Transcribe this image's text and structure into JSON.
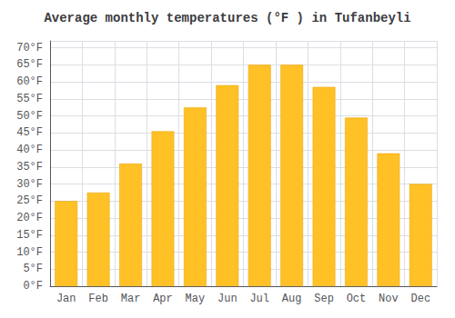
{
  "chart_data": {
    "type": "bar",
    "title": "Average monthly temperatures (°F ) in Tufanbeyli",
    "categories": [
      "Jan",
      "Feb",
      "Mar",
      "Apr",
      "May",
      "Jun",
      "Jul",
      "Aug",
      "Sep",
      "Oct",
      "Nov",
      "Dec"
    ],
    "values": [
      25,
      27.5,
      36,
      45.5,
      52.5,
      59,
      65,
      65,
      58.5,
      49.5,
      39,
      30
    ],
    "color": "#FFC125",
    "ylim": [
      0,
      72
    ],
    "yticks": [
      {
        "value": 0,
        "label": "0°F"
      },
      {
        "value": 5,
        "label": "5°F"
      },
      {
        "value": 10,
        "label": "10°F"
      },
      {
        "value": 15,
        "label": "15°F"
      },
      {
        "value": 20,
        "label": "20°F"
      },
      {
        "value": 25,
        "label": "25°F"
      },
      {
        "value": 30,
        "label": "30°F"
      },
      {
        "value": 35,
        "label": "35°F"
      },
      {
        "value": 40,
        "label": "40°F"
      },
      {
        "value": 45,
        "label": "45°F"
      },
      {
        "value": 50,
        "label": "50°F"
      },
      {
        "value": 55,
        "label": "55°F"
      },
      {
        "value": 60,
        "label": "60°F"
      },
      {
        "value": 65,
        "label": "65°F"
      },
      {
        "value": 70,
        "label": "70°F"
      }
    ],
    "grid": true
  }
}
